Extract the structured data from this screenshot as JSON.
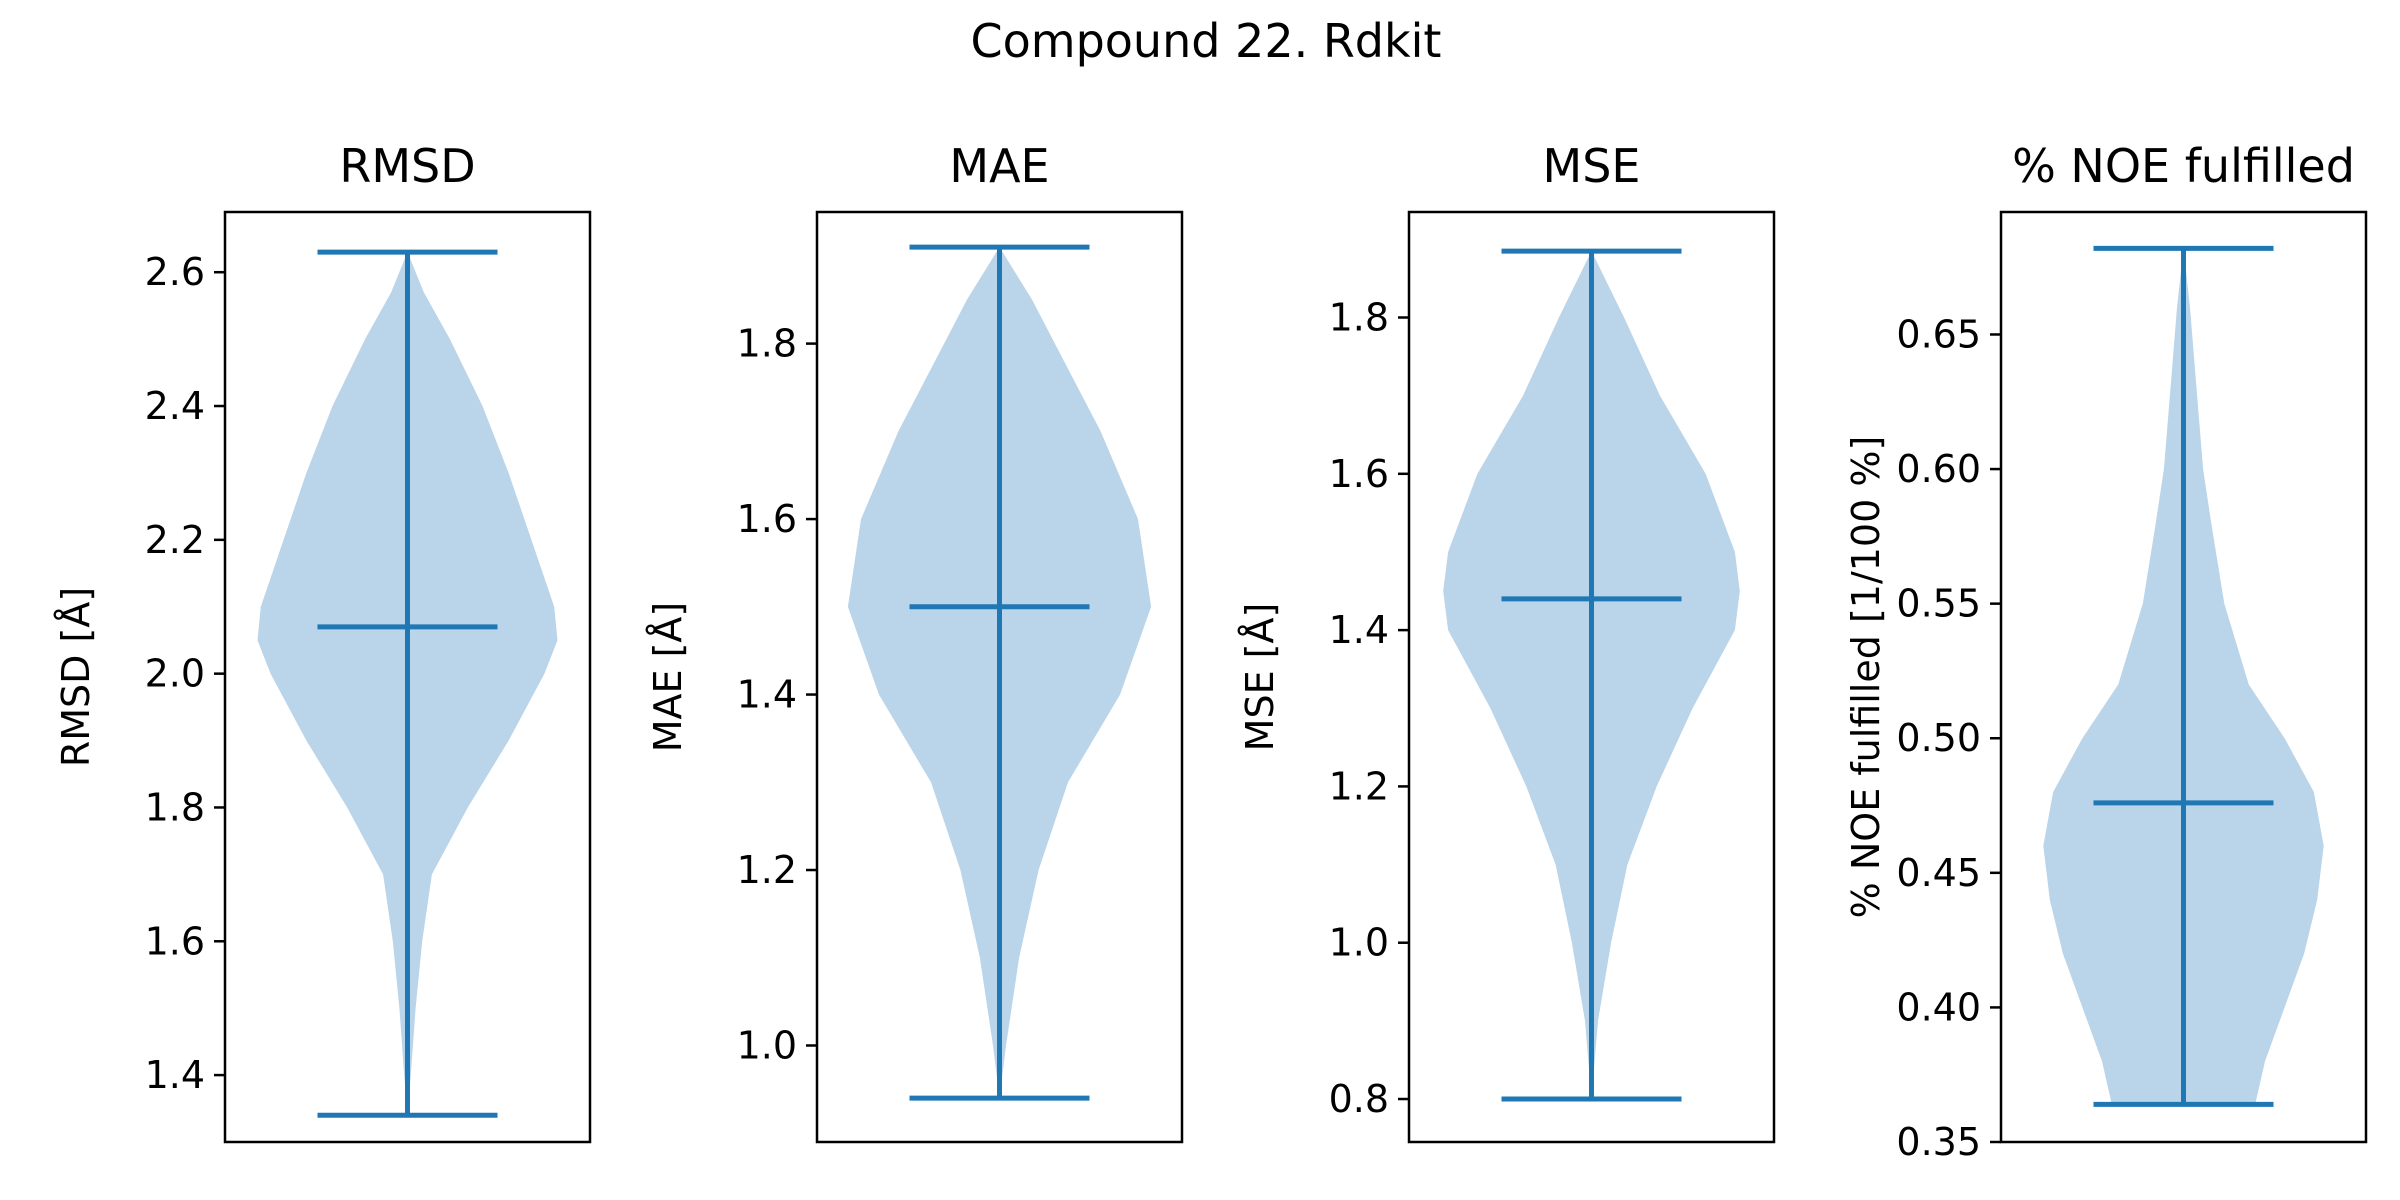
{
  "figure": {
    "suptitle": "Compound 22. Rdkit"
  },
  "colors": {
    "violin_fill": "#a9c9e3",
    "violin_line": "#1f77b4",
    "axes": "#000000"
  },
  "chart_data": [
    {
      "type": "violin",
      "title": "RMSD",
      "ylabel": "RMSD [Å]",
      "ylim": [
        1.3,
        2.69
      ],
      "yticks": [
        1.4,
        1.6,
        1.8,
        2.0,
        2.2,
        2.4,
        2.6
      ],
      "ytick_labels": [
        "1.4",
        "1.6",
        "1.8",
        "2.0",
        "2.2",
        "2.4",
        "2.6"
      ],
      "min": 1.34,
      "max": 2.63,
      "median": 2.07,
      "density": [
        [
          1.34,
          0.0
        ],
        [
          1.4,
          0.02
        ],
        [
          1.5,
          0.05
        ],
        [
          1.6,
          0.09
        ],
        [
          1.7,
          0.15
        ],
        [
          1.8,
          0.37
        ],
        [
          1.9,
          0.62
        ],
        [
          2.0,
          0.84
        ],
        [
          2.05,
          0.92
        ],
        [
          2.1,
          0.9
        ],
        [
          2.2,
          0.76
        ],
        [
          2.3,
          0.62
        ],
        [
          2.4,
          0.46
        ],
        [
          2.5,
          0.26
        ],
        [
          2.57,
          0.1
        ],
        [
          2.63,
          0.0
        ]
      ]
    },
    {
      "type": "violin",
      "title": "MAE",
      "ylabel": "MAE [Å]",
      "ylim": [
        0.89,
        1.95
      ],
      "yticks": [
        1.0,
        1.2,
        1.4,
        1.6,
        1.8
      ],
      "ytick_labels": [
        "1.0",
        "1.2",
        "1.4",
        "1.6",
        "1.8"
      ],
      "min": 0.94,
      "max": 1.91,
      "median": 1.5,
      "density": [
        [
          0.94,
          0.0
        ],
        [
          1.0,
          0.04
        ],
        [
          1.1,
          0.12
        ],
        [
          1.2,
          0.24
        ],
        [
          1.3,
          0.42
        ],
        [
          1.4,
          0.74
        ],
        [
          1.5,
          0.93
        ],
        [
          1.6,
          0.85
        ],
        [
          1.7,
          0.62
        ],
        [
          1.8,
          0.34
        ],
        [
          1.85,
          0.2
        ],
        [
          1.91,
          0.0
        ]
      ]
    },
    {
      "type": "violin",
      "title": "MSE",
      "ylabel": "MSE [Å]",
      "ylim": [
        0.745,
        1.935
      ],
      "yticks": [
        0.8,
        1.0,
        1.2,
        1.4,
        1.6,
        1.8
      ],
      "ytick_labels": [
        "0.8",
        "1.0",
        "1.2",
        "1.4",
        "1.6",
        "1.8"
      ],
      "min": 0.8,
      "max": 1.885,
      "median": 1.44,
      "density": [
        [
          0.8,
          0.0
        ],
        [
          0.9,
          0.04
        ],
        [
          1.0,
          0.12
        ],
        [
          1.1,
          0.22
        ],
        [
          1.2,
          0.4
        ],
        [
          1.3,
          0.62
        ],
        [
          1.4,
          0.88
        ],
        [
          1.45,
          0.91
        ],
        [
          1.5,
          0.88
        ],
        [
          1.6,
          0.7
        ],
        [
          1.7,
          0.42
        ],
        [
          1.8,
          0.2
        ],
        [
          1.885,
          0.0
        ]
      ]
    },
    {
      "type": "violin",
      "title": "% NOE fulfilled",
      "ylabel": "% NOE fulfilled [1/100 %]",
      "ylim": [
        0.35,
        0.6955
      ],
      "yticks": [
        0.35,
        0.4,
        0.45,
        0.5,
        0.55,
        0.6,
        0.65
      ],
      "ytick_labels": [
        "0.35",
        "0.40",
        "0.45",
        "0.50",
        "0.55",
        "0.60",
        "0.65"
      ],
      "min": 0.364,
      "max": 0.682,
      "median": 0.476,
      "density": [
        [
          0.364,
          0.44
        ],
        [
          0.38,
          0.5
        ],
        [
          0.4,
          0.62
        ],
        [
          0.42,
          0.74
        ],
        [
          0.44,
          0.82
        ],
        [
          0.46,
          0.86
        ],
        [
          0.48,
          0.8
        ],
        [
          0.5,
          0.62
        ],
        [
          0.52,
          0.4
        ],
        [
          0.55,
          0.25
        ],
        [
          0.58,
          0.17
        ],
        [
          0.6,
          0.12
        ],
        [
          0.63,
          0.08
        ],
        [
          0.66,
          0.04
        ],
        [
          0.682,
          0.0
        ]
      ]
    }
  ]
}
